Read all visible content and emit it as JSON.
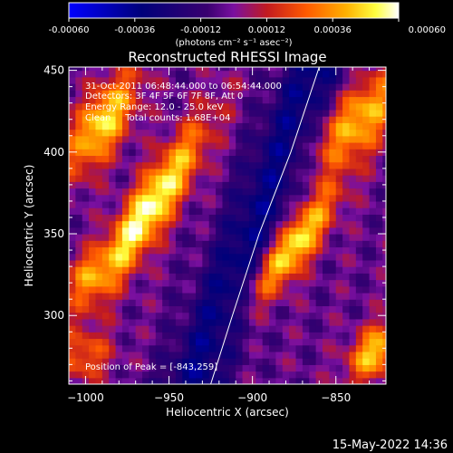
{
  "colorbar": {
    "ticks": [
      "-0.00060",
      "-0.00036",
      "-0.00012",
      "0.00012",
      "0.00036",
      "0.00060"
    ],
    "units": "(photons cm⁻² s⁻¹ asec⁻²)",
    "colors": [
      "#0000ff",
      "#000060",
      "#3a0070",
      "#6a1ab0",
      "#b8240a",
      "#ff6a00",
      "#ffb300",
      "#ffff40",
      "#ffffff"
    ]
  },
  "chart_data": {
    "type": "heatmap",
    "title": "Reconstructed RHESSI Image",
    "xlabel": "Heliocentric X (arcsec)",
    "ylabel": "Heliocentric Y (arcsec)",
    "xlim": [
      -1010,
      -820
    ],
    "ylim": [
      258,
      452
    ],
    "x_ticks": [
      -1000,
      -950,
      -900,
      -850
    ],
    "x_tick_labels": [
      "−1000",
      "−950",
      "−900",
      "−850"
    ],
    "y_ticks": [
      300,
      350,
      400,
      450
    ],
    "y_tick_labels": [
      "300",
      "350",
      "400",
      "450"
    ],
    "colorbar_range": [
      -0.0006,
      0.0006
    ],
    "sources": [
      {
        "x": -962,
        "y": 365,
        "sx": 9,
        "sy": 42,
        "angle": 58,
        "amp": 1.0
      },
      {
        "x": -990,
        "y": 418,
        "sx": 10,
        "sy": 24,
        "angle": 60,
        "amp": 0.85
      },
      {
        "x": -876,
        "y": 342,
        "sx": 8,
        "sy": 28,
        "angle": 55,
        "amp": 0.95
      },
      {
        "x": -836,
        "y": 420,
        "sx": 12,
        "sy": 26,
        "angle": 50,
        "amp": 0.75
      },
      {
        "x": -826,
        "y": 278,
        "sx": 9,
        "sy": 14,
        "angle": 50,
        "amp": 0.8
      },
      {
        "x": -1000,
        "y": 275,
        "sx": 10,
        "sy": 12,
        "angle": 40,
        "amp": 0.45
      },
      {
        "x": -1000,
        "y": 325,
        "sx": 8,
        "sy": 12,
        "angle": 60,
        "amp": 0.4
      }
    ],
    "limb": [
      [
        -925,
        258
      ],
      [
        -912,
        300
      ],
      [
        -896,
        350
      ],
      [
        -877,
        400
      ],
      [
        -860,
        452
      ]
    ],
    "peak_position": [
      -843,
      259
    ]
  },
  "annotations": {
    "time_range": "31-Oct-2011 06:48:44.000 to 06:54:44.000",
    "detectors": "Detectors: 3F 4F 5F 6F 7F 8F, Att 0",
    "energy": "Energy Range: 12.0 - 25.0 keV",
    "counts": "Clean     Total counts: 1.68E+04",
    "peak": "Position of Peak = [-843,259]"
  },
  "footer": {
    "date": "15-May-2022 14:36"
  }
}
